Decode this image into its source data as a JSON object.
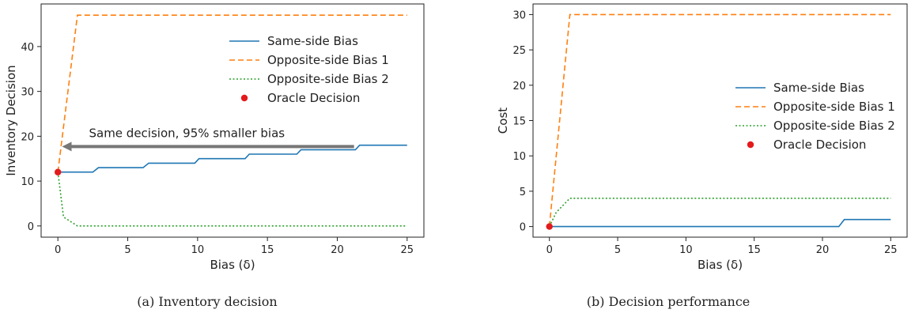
{
  "captions": {
    "left": "(a) Inventory decision",
    "right": "(b) Decision performance"
  },
  "colors": {
    "same_side": "#1f77b4",
    "opposite_1": "#ff7f0e",
    "opposite_2": "#2ca02c",
    "oracle": "#e41a1c",
    "arrow": "#777777"
  },
  "chart_data": [
    {
      "type": "line",
      "title": "",
      "xlabel": "Bias (δ)",
      "ylabel": "Inventory Decision",
      "xlim": [
        -1.2,
        26.2
      ],
      "ylim": [
        -2.5,
        49.5
      ],
      "xticks": [
        0,
        5,
        10,
        15,
        20,
        25
      ],
      "yticks": [
        0,
        10,
        20,
        30,
        40
      ],
      "grid": false,
      "legend_position": "top-right",
      "series": [
        {
          "name": "Same-side Bias",
          "style": "solid",
          "color": "#1f77b4",
          "x": [
            0,
            2.5,
            2.9,
            6.1,
            6.5,
            9.8,
            10.1,
            13.4,
            13.7,
            17.1,
            17.4,
            21.3,
            21.6,
            25
          ],
          "y": [
            12,
            12,
            13,
            13,
            14,
            14,
            15,
            15,
            16,
            16,
            17,
            17,
            18,
            18
          ]
        },
        {
          "name": "Opposite-side Bias 1",
          "style": "dashed",
          "color": "#ff7f0e",
          "x": [
            0,
            1.4,
            25
          ],
          "y": [
            12,
            47,
            47
          ]
        },
        {
          "name": "Opposite-side Bias 2",
          "style": "dotted",
          "color": "#2ca02c",
          "x": [
            0,
            0.4,
            1.4,
            25
          ],
          "y": [
            12,
            2,
            0,
            0
          ]
        },
        {
          "name": "Oracle Decision",
          "style": "marker",
          "color": "#e41a1c",
          "x": [
            0
          ],
          "y": [
            12
          ]
        }
      ],
      "annotation": {
        "text": "Same decision, 95% smaller bias",
        "arrow_from": [
          21.2,
          17.7
        ],
        "arrow_to": [
          0.3,
          17.7
        ]
      }
    },
    {
      "type": "line",
      "title": "",
      "xlabel": "Bias (δ)",
      "ylabel": "Cost",
      "xlim": [
        -1.2,
        26.2
      ],
      "ylim": [
        -1.5,
        31.5
      ],
      "xticks": [
        0,
        5,
        10,
        15,
        20,
        25
      ],
      "yticks": [
        0,
        5,
        10,
        15,
        20,
        25,
        30
      ],
      "grid": false,
      "legend_position": "center-right",
      "series": [
        {
          "name": "Same-side Bias",
          "style": "solid",
          "color": "#1f77b4",
          "x": [
            0,
            21.2,
            21.6,
            25
          ],
          "y": [
            0,
            0,
            1,
            1
          ]
        },
        {
          "name": "Opposite-side Bias 1",
          "style": "dashed",
          "color": "#ff7f0e",
          "x": [
            0,
            1.5,
            25
          ],
          "y": [
            0,
            30,
            30
          ]
        },
        {
          "name": "Opposite-side Bias 2",
          "style": "dotted",
          "color": "#2ca02c",
          "x": [
            0,
            0.5,
            1.5,
            25
          ],
          "y": [
            0,
            2,
            4,
            4
          ]
        },
        {
          "name": "Oracle Decision",
          "style": "marker",
          "color": "#e41a1c",
          "x": [
            0
          ],
          "y": [
            0
          ]
        }
      ]
    }
  ]
}
